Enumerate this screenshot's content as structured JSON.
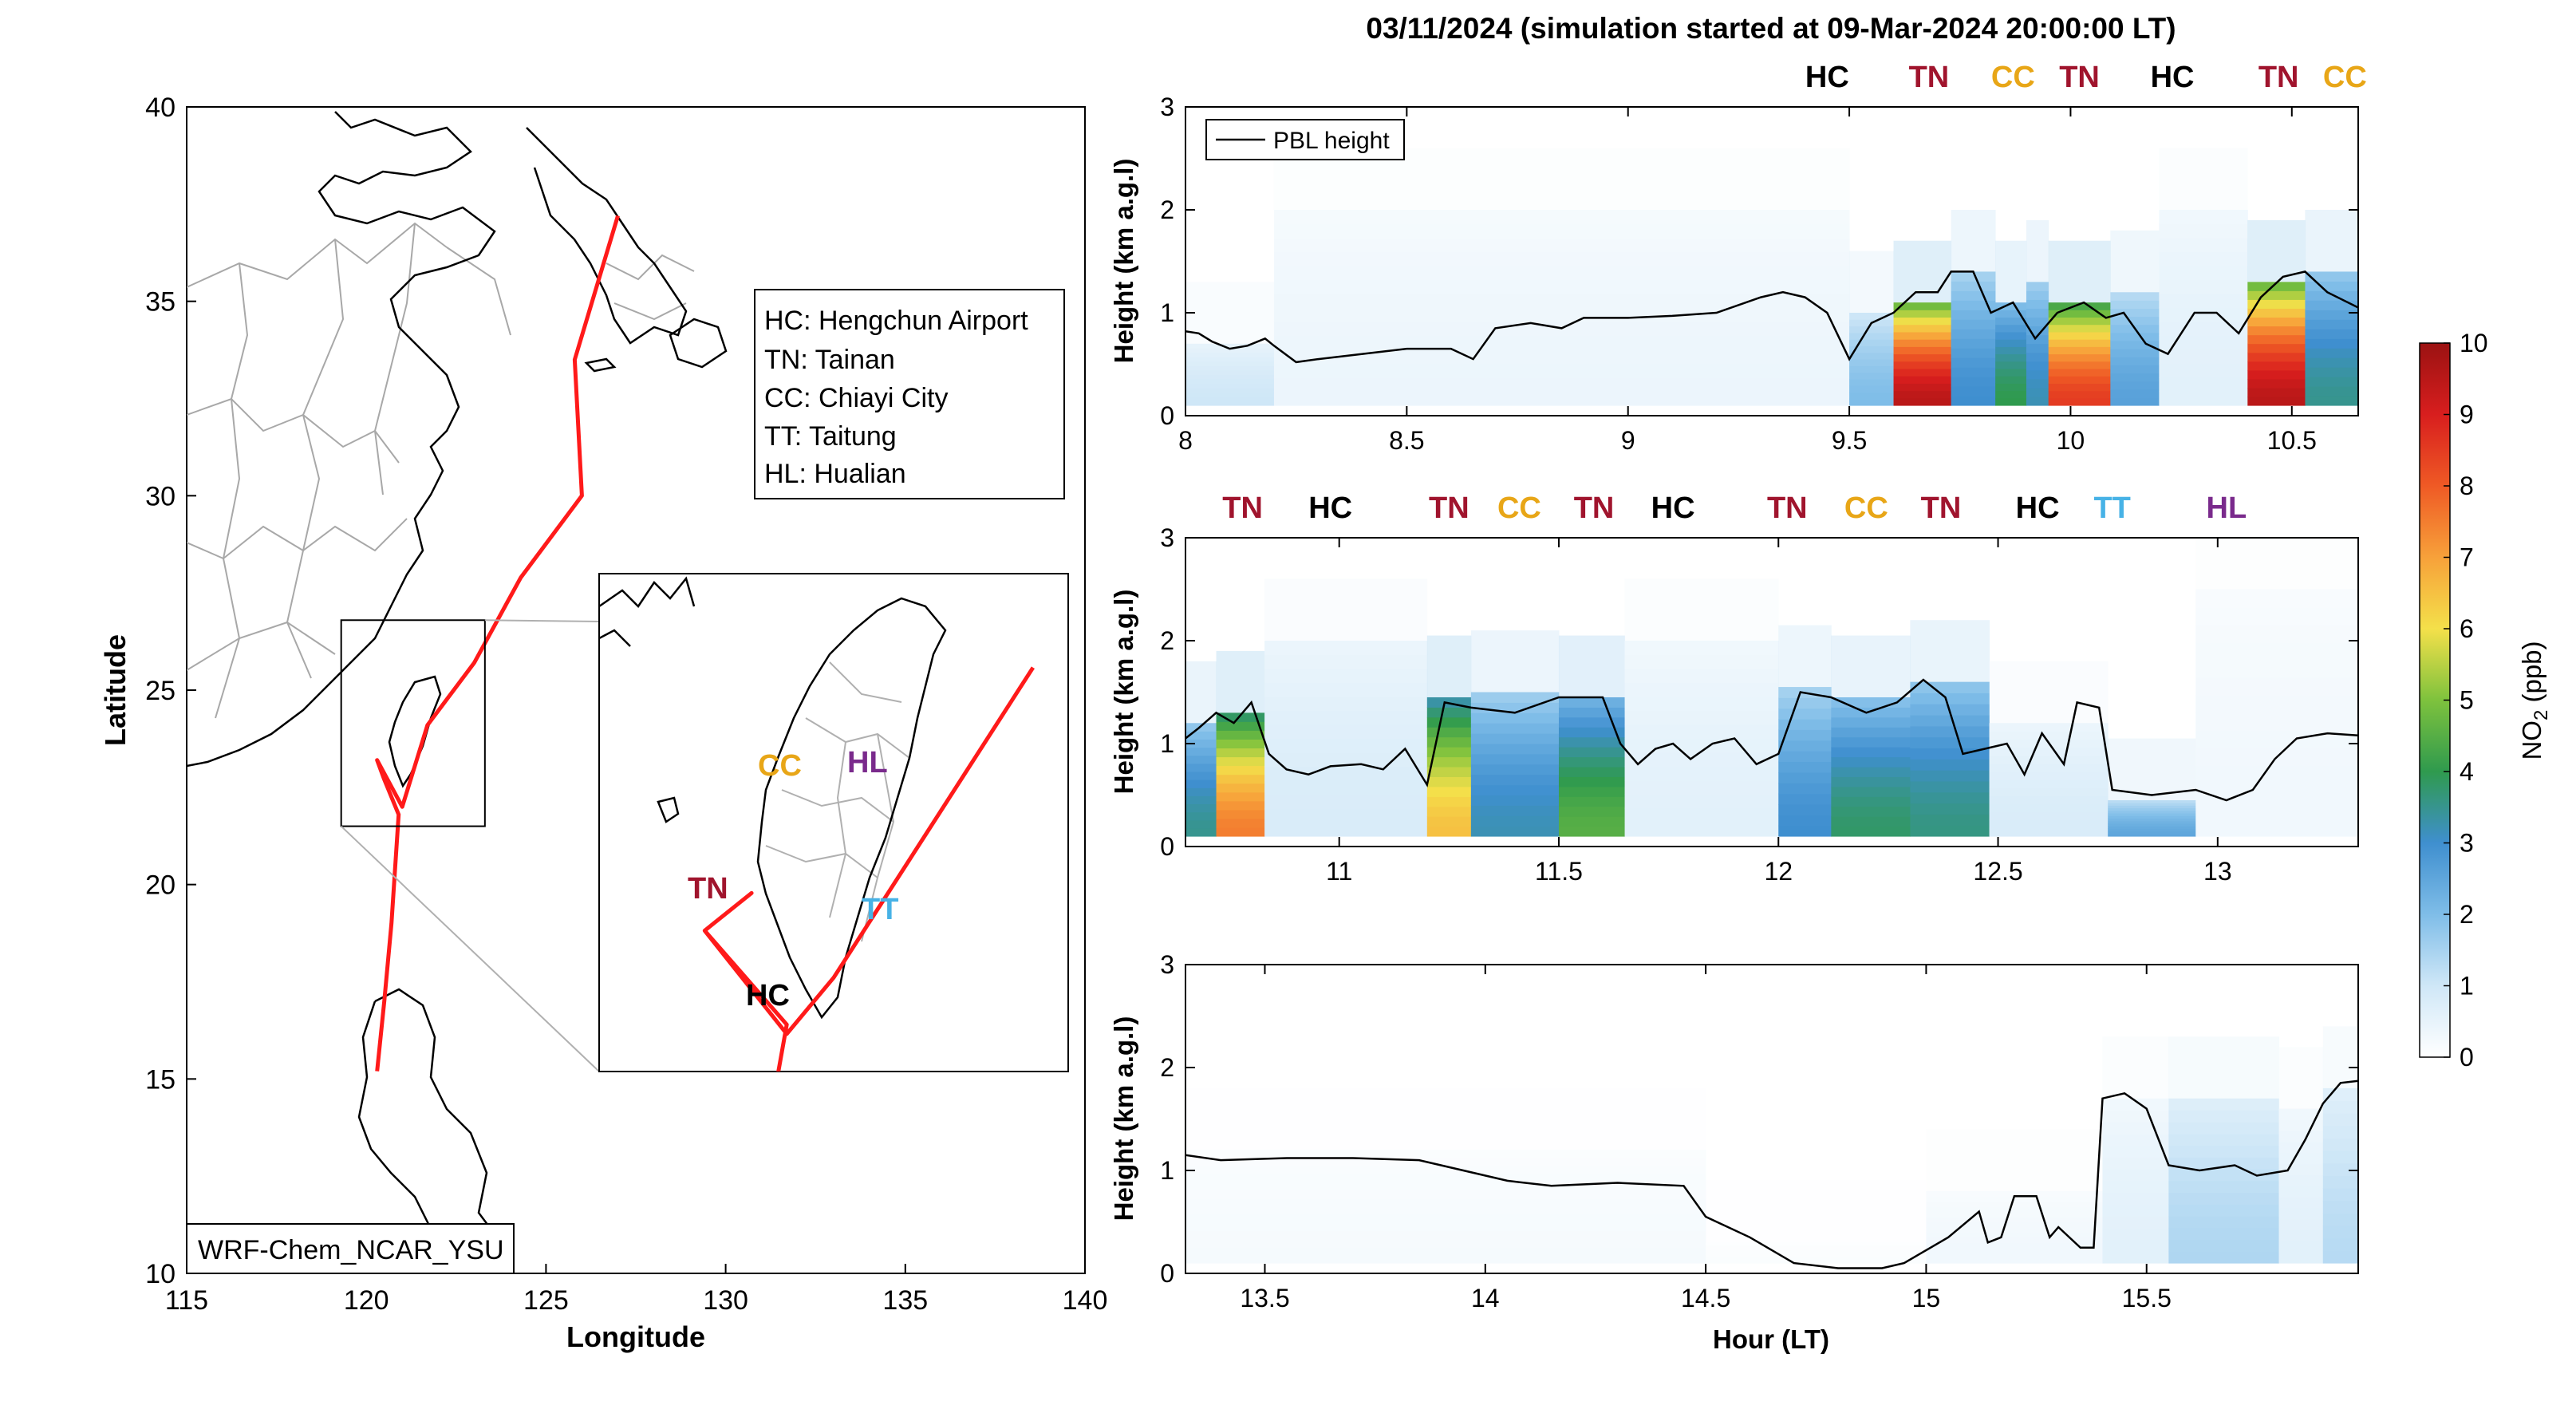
{
  "figure": {
    "title": "03/11/2024 (simulation started at 09-Mar-2024 20:00:00 LT)"
  },
  "colors": {
    "HC": "#000000",
    "TN": "#a0142d",
    "CC": "#e8a617",
    "TT": "#47b2e6",
    "HL": "#7a2a8c",
    "track": "#ff1a1a",
    "coast": "#000000",
    "borders": "#a0a0a0"
  },
  "chart_data": [
    {
      "id": "map",
      "type": "map",
      "xlabel": "Longitude",
      "ylabel": "Latitude",
      "xlim": [
        115,
        140
      ],
      "ylim": [
        10,
        40
      ],
      "xticks": [
        "115",
        "120",
        "125",
        "130",
        "135",
        "140"
      ],
      "yticks": [
        "10",
        "15",
        "20",
        "25",
        "30",
        "35",
        "40"
      ],
      "legend": [
        "HC: Hengchun Airport",
        "TN: Tainan",
        "CC: Chiayi City",
        "TT: Taitung",
        "HL: Hualian"
      ],
      "annotation": "WRF-Chem_NCAR_YSU",
      "inset_region": {
        "lon": [
          119.3,
          123.3
        ],
        "lat": [
          21.5,
          26.8
        ]
      },
      "inset_labels": [
        {
          "code": "CC",
          "text": "CC"
        },
        {
          "code": "HL",
          "text": "HL"
        },
        {
          "code": "TN",
          "text": "TN"
        },
        {
          "code": "TT",
          "text": "TT"
        },
        {
          "code": "HC",
          "text": "HC"
        }
      ],
      "flight_track": [
        [
          127.0,
          37.2
        ],
        [
          125.8,
          33.5
        ],
        [
          126.0,
          30.0
        ],
        [
          124.3,
          27.9
        ],
        [
          123.0,
          25.7
        ],
        [
          121.7,
          24.1
        ],
        [
          121.0,
          22.0
        ],
        [
          120.3,
          23.2
        ],
        [
          120.5,
          22.7
        ],
        [
          120.9,
          21.8
        ],
        [
          120.7,
          19.0
        ],
        [
          120.5,
          17.0
        ],
        [
          120.3,
          15.2
        ]
      ],
      "inset_track": [
        [
          123.0,
          25.8
        ],
        [
          121.3,
          22.5
        ],
        [
          120.9,
          21.9
        ],
        [
          120.2,
          23.0
        ],
        [
          120.6,
          23.4
        ],
        [
          120.2,
          23.0
        ],
        [
          120.9,
          22.0
        ],
        [
          120.8,
          21.3
        ]
      ]
    },
    {
      "id": "panel1",
      "type": "heatmap",
      "xlabel": "",
      "ylabel": "Height (km a.g.l)",
      "xlim": [
        8,
        10.65
      ],
      "ylim": [
        0,
        3
      ],
      "xticks": [
        "8",
        "8.5",
        "9",
        "9.5",
        "10",
        "10.5"
      ],
      "yticks": [
        "0",
        "1",
        "2",
        "3"
      ],
      "legend": "PBL height",
      "site_labels": [
        {
          "text": "HC",
          "code": "HC",
          "x": 9.45
        },
        {
          "text": "TN",
          "code": "TN",
          "x": 9.68
        },
        {
          "text": "CC",
          "code": "CC",
          "x": 9.87
        },
        {
          "text": "TN",
          "code": "TN",
          "x": 10.02
        },
        {
          "text": "HC",
          "code": "HC",
          "x": 10.23
        },
        {
          "text": "TN",
          "code": "TN",
          "x": 10.47
        },
        {
          "text": "CC",
          "code": "CC",
          "x": 10.62
        }
      ],
      "no2_columns": [
        {
          "x0": 8.0,
          "x1": 8.2,
          "top": 0.7,
          "v": 1.0
        },
        {
          "x0": 8.2,
          "x1": 9.5,
          "top": 2.0,
          "v": 0.4
        },
        {
          "x0": 9.5,
          "x1": 9.6,
          "top": 1.0,
          "v": 2.0
        },
        {
          "x0": 9.6,
          "x1": 9.73,
          "top": 1.1,
          "v": 9.5
        },
        {
          "x0": 9.73,
          "x1": 9.83,
          "top": 1.4,
          "v": 3.0
        },
        {
          "x0": 9.83,
          "x1": 9.9,
          "top": 1.1,
          "v": 4.0
        },
        {
          "x0": 9.9,
          "x1": 9.95,
          "top": 1.3,
          "v": 3.2
        },
        {
          "x0": 9.95,
          "x1": 10.09,
          "top": 1.1,
          "v": 8.5
        },
        {
          "x0": 10.09,
          "x1": 10.2,
          "top": 1.2,
          "v": 2.6
        },
        {
          "x0": 10.2,
          "x1": 10.4,
          "top": 2.0,
          "v": 0.6
        },
        {
          "x0": 10.4,
          "x1": 10.53,
          "top": 1.3,
          "v": 9.5
        },
        {
          "x0": 10.53,
          "x1": 10.65,
          "top": 1.4,
          "v": 3.5
        }
      ],
      "pbl": [
        [
          8.0,
          0.82
        ],
        [
          8.03,
          0.8
        ],
        [
          8.06,
          0.72
        ],
        [
          8.1,
          0.65
        ],
        [
          8.14,
          0.68
        ],
        [
          8.18,
          0.75
        ],
        [
          8.2,
          0.68
        ],
        [
          8.25,
          0.52
        ],
        [
          8.3,
          0.55
        ],
        [
          8.4,
          0.6
        ],
        [
          8.5,
          0.65
        ],
        [
          8.6,
          0.65
        ],
        [
          8.65,
          0.55
        ],
        [
          8.7,
          0.85
        ],
        [
          8.78,
          0.9
        ],
        [
          8.85,
          0.85
        ],
        [
          8.9,
          0.95
        ],
        [
          9.0,
          0.95
        ],
        [
          9.1,
          0.97
        ],
        [
          9.2,
          1.0
        ],
        [
          9.3,
          1.15
        ],
        [
          9.35,
          1.2
        ],
        [
          9.4,
          1.15
        ],
        [
          9.45,
          1.0
        ],
        [
          9.5,
          0.55
        ],
        [
          9.55,
          0.9
        ],
        [
          9.6,
          1.0
        ],
        [
          9.65,
          1.2
        ],
        [
          9.7,
          1.2
        ],
        [
          9.73,
          1.4
        ],
        [
          9.78,
          1.4
        ],
        [
          9.82,
          1.0
        ],
        [
          9.87,
          1.1
        ],
        [
          9.92,
          0.75
        ],
        [
          9.97,
          1.0
        ],
        [
          10.03,
          1.1
        ],
        [
          10.08,
          0.95
        ],
        [
          10.12,
          1.0
        ],
        [
          10.17,
          0.7
        ],
        [
          10.22,
          0.6
        ],
        [
          10.28,
          1.0
        ],
        [
          10.33,
          1.0
        ],
        [
          10.38,
          0.8
        ],
        [
          10.43,
          1.15
        ],
        [
          10.48,
          1.35
        ],
        [
          10.53,
          1.4
        ],
        [
          10.58,
          1.2
        ],
        [
          10.65,
          1.05
        ]
      ]
    },
    {
      "id": "panel2",
      "type": "heatmap",
      "xlabel": "",
      "ylabel": "Height (km a.g.l)",
      "xlim": [
        10.65,
        13.32
      ],
      "ylim": [
        0,
        3
      ],
      "xticks": [
        "11",
        "11.5",
        "12",
        "12.5",
        "13"
      ],
      "yticks": [
        "0",
        "1",
        "2",
        "3"
      ],
      "site_labels": [
        {
          "text": "TN",
          "code": "TN",
          "x": 10.78
        },
        {
          "text": "HC",
          "code": "HC",
          "x": 10.98
        },
        {
          "text": "TN",
          "code": "TN",
          "x": 11.25
        },
        {
          "text": "CC",
          "code": "CC",
          "x": 11.41
        },
        {
          "text": "TN",
          "code": "TN",
          "x": 11.58
        },
        {
          "text": "HC",
          "code": "HC",
          "x": 11.76
        },
        {
          "text": "TN",
          "code": "TN",
          "x": 12.02
        },
        {
          "text": "CC",
          "code": "CC",
          "x": 12.2
        },
        {
          "text": "TN",
          "code": "TN",
          "x": 12.37
        },
        {
          "text": "HC",
          "code": "HC",
          "x": 12.59
        },
        {
          "text": "TT",
          "code": "TT",
          "x": 12.76
        },
        {
          "text": "HL",
          "code": "HL",
          "x": 13.02
        }
      ],
      "no2_columns": [
        {
          "x0": 10.65,
          "x1": 10.72,
          "top": 1.2,
          "v": 3.5
        },
        {
          "x0": 10.72,
          "x1": 10.83,
          "top": 1.3,
          "v": 7.5
        },
        {
          "x0": 10.83,
          "x1": 11.2,
          "top": 2.0,
          "v": 0.8
        },
        {
          "x0": 11.2,
          "x1": 11.3,
          "top": 1.45,
          "v": 6.5
        },
        {
          "x0": 11.3,
          "x1": 11.5,
          "top": 1.5,
          "v": 3.2
        },
        {
          "x0": 11.5,
          "x1": 11.65,
          "top": 1.45,
          "v": 4.5
        },
        {
          "x0": 11.65,
          "x1": 12.0,
          "top": 2.0,
          "v": 0.6
        },
        {
          "x0": 12.0,
          "x1": 12.12,
          "top": 1.55,
          "v": 3.0
        },
        {
          "x0": 12.12,
          "x1": 12.3,
          "top": 1.45,
          "v": 3.8
        },
        {
          "x0": 12.3,
          "x1": 12.48,
          "top": 1.6,
          "v": 3.6
        },
        {
          "x0": 12.48,
          "x1": 12.75,
          "top": 1.2,
          "v": 0.8
        },
        {
          "x0": 12.75,
          "x1": 12.95,
          "top": 0.45,
          "v": 2.5
        },
        {
          "x0": 12.95,
          "x1": 13.32,
          "top": 2.5,
          "v": 0.3
        }
      ],
      "pbl": [
        [
          10.65,
          1.05
        ],
        [
          10.68,
          1.15
        ],
        [
          10.72,
          1.3
        ],
        [
          10.76,
          1.2
        ],
        [
          10.8,
          1.4
        ],
        [
          10.84,
          0.9
        ],
        [
          10.88,
          0.75
        ],
        [
          10.93,
          0.7
        ],
        [
          10.98,
          0.78
        ],
        [
          11.05,
          0.8
        ],
        [
          11.1,
          0.75
        ],
        [
          11.15,
          0.95
        ],
        [
          11.2,
          0.6
        ],
        [
          11.24,
          1.4
        ],
        [
          11.3,
          1.35
        ],
        [
          11.4,
          1.3
        ],
        [
          11.5,
          1.45
        ],
        [
          11.6,
          1.45
        ],
        [
          11.64,
          1.0
        ],
        [
          11.68,
          0.8
        ],
        [
          11.72,
          0.95
        ],
        [
          11.76,
          1.0
        ],
        [
          11.8,
          0.85
        ],
        [
          11.85,
          1.0
        ],
        [
          11.9,
          1.05
        ],
        [
          11.95,
          0.8
        ],
        [
          12.0,
          0.9
        ],
        [
          12.05,
          1.5
        ],
        [
          12.12,
          1.45
        ],
        [
          12.2,
          1.3
        ],
        [
          12.27,
          1.4
        ],
        [
          12.33,
          1.62
        ],
        [
          12.38,
          1.45
        ],
        [
          12.42,
          0.9
        ],
        [
          12.47,
          0.95
        ],
        [
          12.52,
          1.0
        ],
        [
          12.56,
          0.7
        ],
        [
          12.6,
          1.1
        ],
        [
          12.65,
          0.8
        ],
        [
          12.68,
          1.4
        ],
        [
          12.73,
          1.35
        ],
        [
          12.76,
          0.55
        ],
        [
          12.85,
          0.5
        ],
        [
          12.95,
          0.55
        ],
        [
          13.02,
          0.45
        ],
        [
          13.08,
          0.55
        ],
        [
          13.13,
          0.85
        ],
        [
          13.18,
          1.05
        ],
        [
          13.25,
          1.1
        ],
        [
          13.32,
          1.08
        ]
      ]
    },
    {
      "id": "panel3",
      "type": "heatmap",
      "xlabel": "Hour (LT)",
      "ylabel": "Height (km a.g.l)",
      "xlim": [
        13.32,
        15.98
      ],
      "ylim": [
        0,
        3
      ],
      "xticks": [
        "13.5",
        "14",
        "14.5",
        "15",
        "15.5"
      ],
      "yticks": [
        "0",
        "1",
        "2",
        "3"
      ],
      "no2_columns": [
        {
          "x0": 13.32,
          "x1": 14.5,
          "top": 1.2,
          "v": 0.2
        },
        {
          "x0": 14.5,
          "x1": 15.0,
          "top": 0.3,
          "v": 0.1
        },
        {
          "x0": 15.0,
          "x1": 15.4,
          "top": 0.8,
          "v": 0.3
        },
        {
          "x0": 15.4,
          "x1": 15.55,
          "top": 1.7,
          "v": 0.6
        },
        {
          "x0": 15.55,
          "x1": 15.8,
          "top": 1.7,
          "v": 1.4
        },
        {
          "x0": 15.8,
          "x1": 15.9,
          "top": 1.6,
          "v": 0.6
        },
        {
          "x0": 15.9,
          "x1": 15.98,
          "top": 1.8,
          "v": 1.3
        }
      ],
      "pbl": [
        [
          13.32,
          1.15
        ],
        [
          13.4,
          1.1
        ],
        [
          13.55,
          1.12
        ],
        [
          13.7,
          1.12
        ],
        [
          13.85,
          1.1
        ],
        [
          13.95,
          1.0
        ],
        [
          14.05,
          0.9
        ],
        [
          14.15,
          0.85
        ],
        [
          14.3,
          0.88
        ],
        [
          14.45,
          0.85
        ],
        [
          14.5,
          0.55
        ],
        [
          14.6,
          0.35
        ],
        [
          14.7,
          0.1
        ],
        [
          14.8,
          0.05
        ],
        [
          14.9,
          0.05
        ],
        [
          14.95,
          0.1
        ],
        [
          15.05,
          0.35
        ],
        [
          15.12,
          0.6
        ],
        [
          15.14,
          0.3
        ],
        [
          15.17,
          0.35
        ],
        [
          15.2,
          0.75
        ],
        [
          15.25,
          0.75
        ],
        [
          15.28,
          0.35
        ],
        [
          15.3,
          0.45
        ],
        [
          15.35,
          0.25
        ],
        [
          15.38,
          0.25
        ],
        [
          15.4,
          1.7
        ],
        [
          15.45,
          1.75
        ],
        [
          15.5,
          1.6
        ],
        [
          15.55,
          1.05
        ],
        [
          15.62,
          1.0
        ],
        [
          15.7,
          1.05
        ],
        [
          15.75,
          0.95
        ],
        [
          15.82,
          1.0
        ],
        [
          15.86,
          1.3
        ],
        [
          15.9,
          1.65
        ],
        [
          15.94,
          1.85
        ],
        [
          15.98,
          1.87
        ]
      ]
    },
    {
      "id": "colorbar",
      "type": "colorbar",
      "label_main": "NO",
      "label_sub": "2",
      "label_unit": " (ppb)",
      "range": [
        0,
        10
      ],
      "ticks": [
        "0",
        "1",
        "2",
        "3",
        "4",
        "5",
        "6",
        "7",
        "8",
        "9",
        "10"
      ]
    }
  ]
}
